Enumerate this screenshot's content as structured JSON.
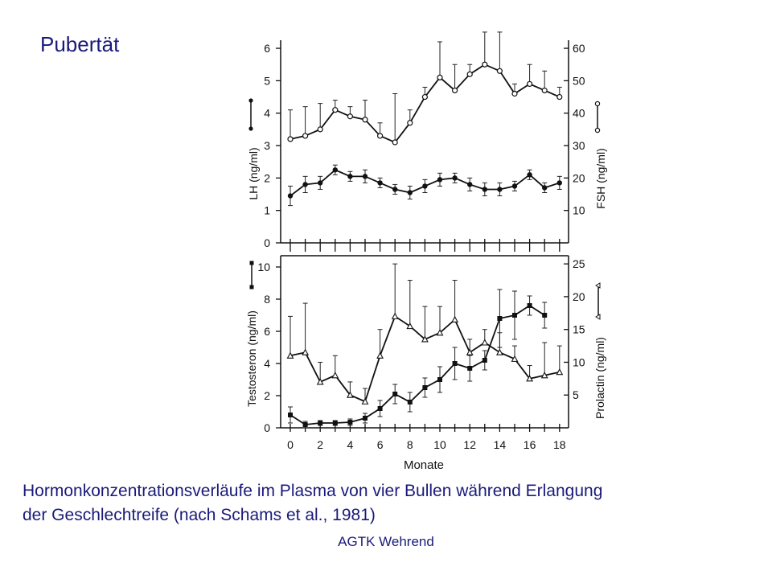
{
  "slide": {
    "title": "Pubertät",
    "caption_line1": "Hormonkonzentrationsverläufe im Plasma von vier Bullen während Erlangung",
    "caption_line2": "der Geschlechtreife (nach Schams et al., 1981)",
    "footer": "AGTK Wehrend"
  },
  "chart_data": [
    {
      "type": "line",
      "panel": "top",
      "x": [
        0,
        1,
        2,
        3,
        4,
        5,
        6,
        7,
        8,
        9,
        10,
        11,
        12,
        13,
        14,
        15,
        16,
        17,
        18
      ],
      "xticks": [
        "0",
        "2",
        "4",
        "6",
        "8",
        "10",
        "12",
        "14",
        "16",
        "18"
      ],
      "y_left_label": "LH (ng/ml)",
      "y_left_ticks": [
        "0",
        "1",
        "2",
        "3",
        "4",
        "5",
        "6"
      ],
      "y_left_lim": [
        0,
        6.2
      ],
      "y_right_label": "FSH (ng/ml)",
      "y_right_ticks": [
        "10",
        "20",
        "30",
        "40",
        "50",
        "60"
      ],
      "y_right_lim": [
        0,
        62
      ],
      "series": [
        {
          "axis": "left",
          "marker": "filled-circle",
          "color": "#111111",
          "values": [
            1.45,
            1.8,
            1.85,
            2.25,
            2.05,
            2.05,
            1.85,
            1.65,
            1.55,
            1.75,
            1.95,
            2.0,
            1.8,
            1.65,
            1.65,
            1.75,
            2.1,
            1.7,
            1.85
          ],
          "errors": [
            0.3,
            0.25,
            0.2,
            0.15,
            0.15,
            0.2,
            0.15,
            0.15,
            0.2,
            0.2,
            0.2,
            0.15,
            0.2,
            0.2,
            0.2,
            0.15,
            0.15,
            0.15,
            0.2
          ]
        },
        {
          "axis": "right",
          "marker": "open-circle",
          "color": "#111111",
          "values": [
            32,
            33,
            35,
            41,
            39,
            38,
            33,
            31,
            37,
            45,
            51,
            47,
            52,
            55,
            53,
            46,
            49,
            47,
            45
          ],
          "errors": [
            9,
            9,
            8,
            3,
            3,
            6,
            4,
            15,
            4,
            3,
            11,
            8,
            3,
            10,
            12,
            3,
            6,
            6,
            3
          ]
        }
      ]
    },
    {
      "type": "line",
      "panel": "bottom",
      "x": [
        0,
        1,
        2,
        3,
        4,
        5,
        6,
        7,
        8,
        9,
        10,
        11,
        12,
        13,
        14,
        15,
        16,
        17,
        18
      ],
      "xticks": [
        "0",
        "2",
        "4",
        "6",
        "8",
        "10",
        "12",
        "14",
        "16",
        "18"
      ],
      "xlabel": "Monate",
      "y_left_label": "Testosteron (ng/ml)",
      "y_left_ticks": [
        "0",
        "2",
        "4",
        "6",
        "8",
        "10"
      ],
      "y_left_lim": [
        0,
        10.6
      ],
      "y_right_label": "Prolactin (ng/ml)",
      "y_right_ticks": [
        "5",
        "10",
        "15",
        "20",
        "25"
      ],
      "y_right_lim": [
        0,
        26
      ],
      "series": [
        {
          "axis": "left",
          "marker": "filled-square",
          "color": "#111111",
          "values": [
            0.8,
            0.2,
            0.3,
            0.3,
            0.35,
            0.6,
            1.2,
            2.1,
            1.6,
            2.5,
            3.0,
            4.0,
            3.7,
            4.2,
            6.8,
            7.0,
            7.6,
            7.0,
            null
          ],
          "errors": [
            0.5,
            0.2,
            0.15,
            0.15,
            0.2,
            0.3,
            0.5,
            0.6,
            0.6,
            0.6,
            0.8,
            1.0,
            0.8,
            0.6,
            1.8,
            1.5,
            0.6,
            0.8,
            null
          ]
        },
        {
          "axis": "right",
          "marker": "open-triangle",
          "color": "#111111",
          "values": [
            11,
            11.5,
            7,
            8,
            5,
            4,
            11,
            17,
            15.5,
            13.5,
            14.5,
            16.5,
            11.5,
            13,
            11.5,
            10.5,
            7.5,
            8,
            8.5
          ],
          "errors": [
            6,
            7.5,
            3,
            3,
            2,
            2,
            4,
            8,
            7,
            5,
            4,
            6,
            2,
            2,
            3,
            2,
            2,
            5,
            4
          ]
        }
      ]
    }
  ]
}
